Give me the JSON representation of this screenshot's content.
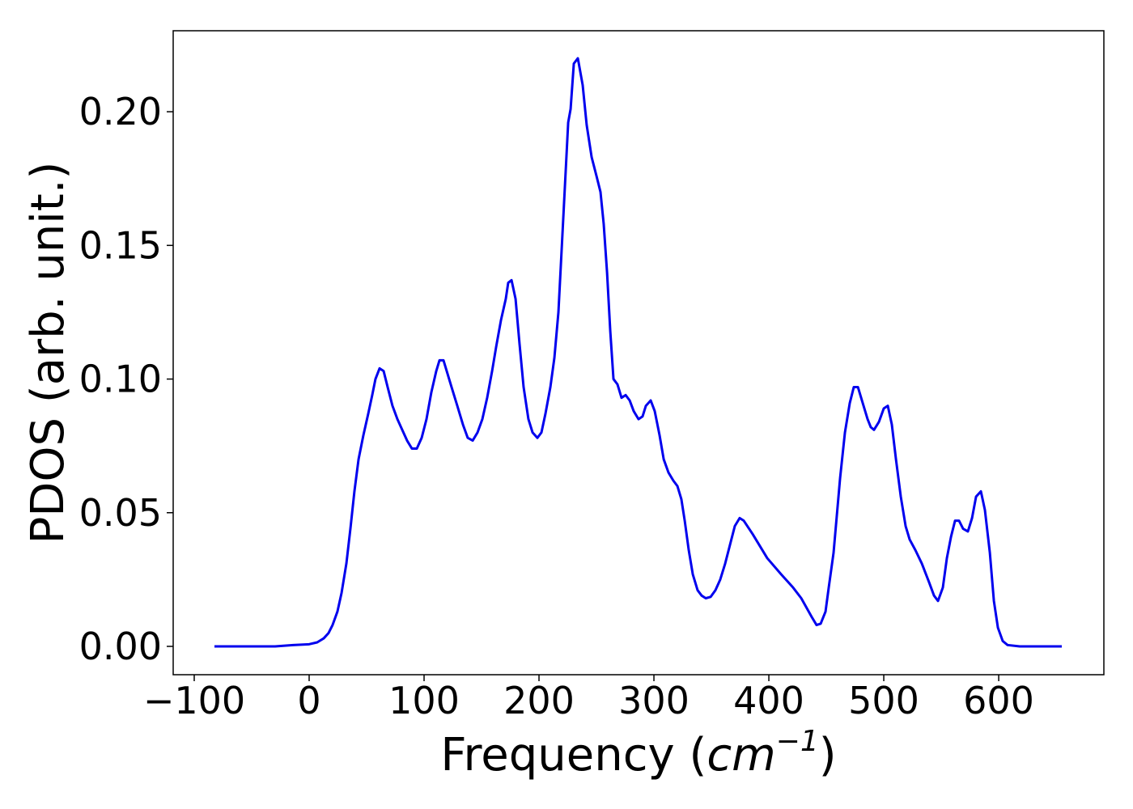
{
  "chart_data": {
    "type": "line",
    "xlabel_parts": [
      "Frequency (",
      "cm",
      "−1",
      ")"
    ],
    "ylabel": "PDOS (arb. unit.)",
    "x": [
      -82.4,
      -29.6,
      -14.1,
      0,
      7.0,
      12.7,
      16.9,
      20.4,
      24.6,
      28.2,
      32.4,
      35.9,
      39.4,
      43.0,
      47.2,
      51.4,
      54.9,
      57.7,
      61.3,
      64.8,
      68.3,
      72.5,
      76.8,
      81.0,
      85.2,
      89.4,
      93.7,
      97.9,
      102.1,
      106.3,
      110.6,
      113.4,
      116.9,
      120.4,
      123.9,
      128.9,
      133.8,
      138.0,
      142.3,
      146.5,
      150.7,
      154.9,
      159.2,
      162.7,
      166.9,
      171.1,
      173.2,
      176.1,
      179.6,
      183.1,
      186.6,
      190.8,
      194.4,
      198.6,
      202.1,
      205.6,
      209.9,
      213.4,
      216.9,
      221.1,
      225.4,
      227.5,
      230.3,
      233.8,
      238.0,
      241.5,
      245.8,
      250.0,
      253.5,
      256.3,
      259.2,
      262.0,
      264.8,
      268.3,
      271.8,
      275.4,
      278.9,
      282.4,
      286.6,
      290.1,
      293.0,
      297.2,
      300.7,
      304.9,
      308.5,
      312.7,
      316.9,
      320.4,
      323.9,
      326.8,
      330.3,
      333.8,
      338.0,
      341.5,
      345.1,
      349.3,
      353.5,
      357.7,
      362.0,
      366.2,
      370.4,
      374.6,
      378.2,
      385.9,
      398.6,
      410.6,
      421.1,
      428.2,
      437.3,
      441.5,
      445.1,
      449.3,
      452.1,
      456.3,
      462.0,
      466.2,
      470.4,
      473.9,
      477.5,
      481.7,
      485.9,
      488.7,
      491.5,
      495.8,
      500.0,
      503.5,
      507.0,
      510.6,
      514.8,
      519.0,
      522.5,
      527.5,
      533.1,
      539.4,
      543.7,
      547.2,
      551.4,
      554.9,
      558.5,
      562.0,
      565.5,
      569.0,
      573.2,
      576.8,
      580.3,
      584.5,
      588.0,
      592.3,
      595.8,
      599.3,
      603.5,
      607.7,
      618.3,
      654.9
    ],
    "series": [
      {
        "color": "#0000ee",
        "values": [
          0,
          0,
          0.0005,
          0.0008,
          0.0015,
          0.003,
          0.005,
          0.008,
          0.013,
          0.02,
          0.031,
          0.044,
          0.058,
          0.07,
          0.079,
          0.087,
          0.094,
          0.1,
          0.104,
          0.103,
          0.097,
          0.09,
          0.085,
          0.081,
          0.077,
          0.074,
          0.074,
          0.078,
          0.085,
          0.095,
          0.103,
          0.107,
          0.107,
          0.102,
          0.097,
          0.09,
          0.083,
          0.078,
          0.077,
          0.08,
          0.085,
          0.093,
          0.103,
          0.112,
          0.122,
          0.13,
          0.136,
          0.137,
          0.13,
          0.113,
          0.097,
          0.085,
          0.08,
          0.078,
          0.08,
          0.087,
          0.097,
          0.108,
          0.125,
          0.16,
          0.196,
          0.201,
          0.218,
          0.22,
          0.21,
          0.195,
          0.183,
          0.176,
          0.17,
          0.158,
          0.14,
          0.118,
          0.1,
          0.098,
          0.093,
          0.094,
          0.092,
          0.088,
          0.085,
          0.086,
          0.09,
          0.092,
          0.088,
          0.079,
          0.07,
          0.065,
          0.062,
          0.06,
          0.055,
          0.047,
          0.036,
          0.027,
          0.021,
          0.019,
          0.018,
          0.0185,
          0.021,
          0.025,
          0.031,
          0.038,
          0.045,
          0.048,
          0.047,
          0.042,
          0.033,
          0.027,
          0.022,
          0.018,
          0.011,
          0.008,
          0.0085,
          0.013,
          0.022,
          0.035,
          0.063,
          0.08,
          0.091,
          0.097,
          0.097,
          0.091,
          0.085,
          0.082,
          0.081,
          0.084,
          0.089,
          0.09,
          0.083,
          0.07,
          0.056,
          0.045,
          0.04,
          0.036,
          0.031,
          0.024,
          0.019,
          0.017,
          0.022,
          0.033,
          0.041,
          0.047,
          0.047,
          0.044,
          0.043,
          0.048,
          0.056,
          0.058,
          0.051,
          0.035,
          0.017,
          0.007,
          0.002,
          0.0005,
          0,
          0
        ]
      }
    ],
    "xlim": [
      -118.3,
      691.5
    ],
    "ylim": [
      -0.0106,
      0.2303
    ],
    "xticks": [
      {
        "value": -100,
        "label": "−100"
      },
      0,
      100,
      200,
      300,
      400,
      500,
      600
    ],
    "yticks": [
      {
        "value": 0,
        "label": "0.00"
      },
      {
        "value": 0.05,
        "label": "0.05"
      },
      {
        "value": 0.1,
        "label": "0.10"
      },
      {
        "value": 0.15,
        "label": "0.15"
      },
      {
        "value": 0.2,
        "label": "0.20"
      }
    ],
    "grid": false
  }
}
